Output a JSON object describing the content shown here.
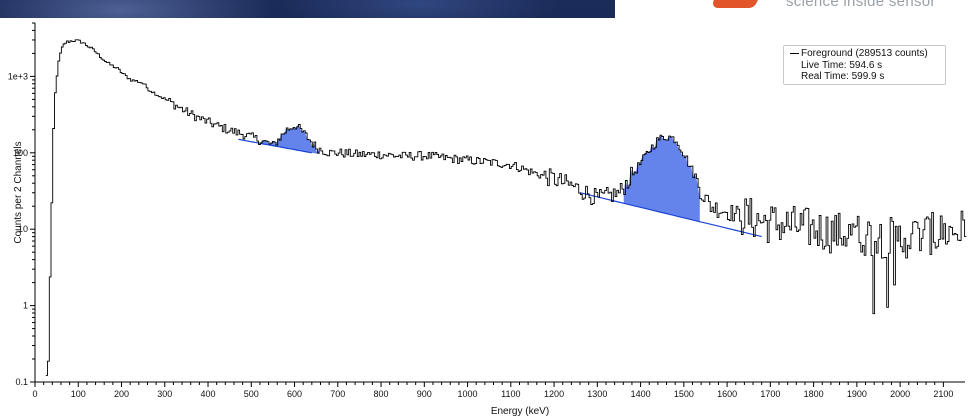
{
  "logo": {
    "text": "science inside sensor"
  },
  "legend": {
    "series_label": "Foreground (289513 counts)",
    "live_time": "Live Time: 594.6 s",
    "real_time": "Real Time: 599.9 s"
  },
  "chart_data": {
    "type": "line",
    "title": "",
    "xlabel": "Energy (keV)",
    "ylabel": "Counts per 2 Channels",
    "xlim": [
      0,
      2150
    ],
    "ylim": [
      0.1,
      5000
    ],
    "yscale": "log",
    "grid": false,
    "legend_position": "top-right",
    "x_ticks": [
      0,
      100,
      200,
      300,
      400,
      500,
      600,
      700,
      800,
      900,
      1000,
      1100,
      1200,
      1300,
      1400,
      1500,
      1600,
      1700,
      1800,
      1900,
      2000,
      2100
    ],
    "y_ticks": [
      0.1,
      1,
      10,
      100,
      1000
    ],
    "y_tick_labels": [
      "0.1",
      "1",
      "10",
      "100",
      "1e+3"
    ],
    "colors": {
      "spectrum": "#000000",
      "peak_fill": "#4a6fe8",
      "continuum": "#1a44d6"
    },
    "series": [
      {
        "name": "Foreground (289513 counts)",
        "x": [
          25,
          30,
          33,
          36,
          40,
          45,
          50,
          55,
          60,
          65,
          70,
          80,
          90,
          100,
          110,
          120,
          130,
          140,
          150,
          160,
          170,
          180,
          190,
          200,
          220,
          240,
          250,
          260,
          280,
          300,
          320,
          350,
          380,
          400,
          420,
          450,
          480,
          500,
          520,
          550,
          580,
          600,
          620,
          650,
          680,
          700,
          750,
          800,
          850,
          900,
          950,
          1000,
          1050,
          1100,
          1150,
          1200,
          1250,
          1300,
          1350,
          1400,
          1420,
          1440,
          1460,
          1480,
          1500,
          1520,
          1540,
          1560,
          1600,
          1650,
          1700,
          1750,
          1800,
          1850,
          1900,
          1950,
          2000,
          2050,
          2100,
          2150
        ],
        "y": [
          0.1,
          0.3,
          2,
          5,
          150,
          600,
          1200,
          1800,
          2300,
          2600,
          2800,
          2900,
          2950,
          2900,
          2750,
          2500,
          2300,
          2050,
          1800,
          1600,
          1450,
          1350,
          1250,
          1100,
          900,
          850,
          800,
          680,
          580,
          500,
          430,
          340,
          280,
          250,
          225,
          195,
          175,
          160,
          145,
          125,
          200,
          230,
          180,
          115,
          100,
          100,
          95,
          95,
          90,
          92,
          85,
          80,
          75,
          70,
          55,
          45,
          35,
          25,
          30,
          75,
          110,
          150,
          165,
          150,
          95,
          55,
          30,
          20,
          17,
          14,
          12,
          11,
          10,
          9,
          8.5,
          8,
          7.5,
          8.5,
          9,
          10
        ]
      }
    ],
    "peaks": [
      {
        "region": [
          520,
          660
        ],
        "centroid": 609
      },
      {
        "region": [
          1360,
          1540
        ],
        "centroid": 1460
      }
    ],
    "continuum": [
      {
        "x": [
          470,
          640
        ],
        "y": [
          150,
          100
        ]
      },
      {
        "x": [
          1260,
          1680
        ],
        "y": [
          30,
          8
        ]
      }
    ]
  }
}
